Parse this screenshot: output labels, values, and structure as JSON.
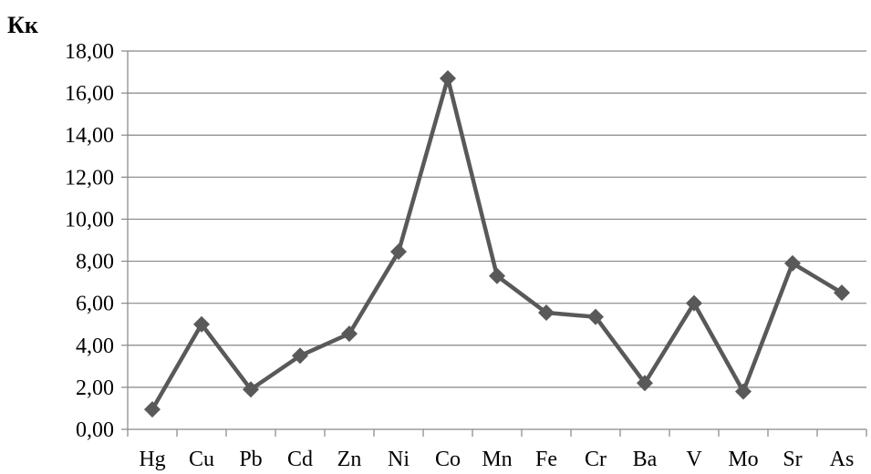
{
  "chart_data": {
    "type": "line",
    "ylabel": "Кк",
    "xlabel": "",
    "title": "",
    "categories": [
      "Hg",
      "Cu",
      "Pb",
      "Cd",
      "Zn",
      "Ni",
      "Co",
      "Mn",
      "Fe",
      "Cr",
      "Ba",
      "V",
      "Mo",
      "Sr",
      "As"
    ],
    "ylim": [
      0,
      18
    ],
    "ytick_step": 2,
    "ytick_labels": [
      "0,00",
      "2,00",
      "4,00",
      "6,00",
      "8,00",
      "10,00",
      "12,00",
      "14,00",
      "16,00",
      "18,00"
    ],
    "grid": true,
    "legend": "none",
    "series": [
      {
        "values": [
          0.95,
          5.0,
          1.9,
          3.5,
          4.55,
          8.45,
          16.7,
          7.3,
          5.55,
          5.35,
          2.2,
          6.0,
          1.8,
          7.9,
          6.5
        ],
        "color": "#595959",
        "marker": "diamond"
      }
    ],
    "colors": {
      "grid": "#868686",
      "axis": "#868686",
      "line": "#595959"
    }
  }
}
